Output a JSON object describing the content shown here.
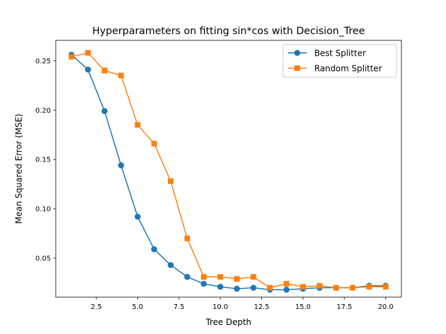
{
  "chart_data": {
    "type": "line",
    "title": "Hyperparameters on fitting sin*cos with Decision_Tree",
    "xlabel": "Tree Depth",
    "ylabel": "Mean Squared Error (MSE)",
    "xlim": [
      0.05,
      20.95
    ],
    "ylim": [
      0.0105,
      0.2706
    ],
    "xticks": [
      2.5,
      5.0,
      7.5,
      10.0,
      12.5,
      15.0,
      17.5,
      20.0
    ],
    "xtick_labels": [
      "2.5",
      "5.0",
      "7.5",
      "10.0",
      "12.5",
      "15.0",
      "17.5",
      "20.0"
    ],
    "yticks": [
      0.05,
      0.1,
      0.15,
      0.2,
      0.25
    ],
    "ytick_labels": [
      "0.05",
      "0.10",
      "0.15",
      "0.20",
      "0.25"
    ],
    "grid": false,
    "legend_position": "top-right",
    "x": [
      1,
      2,
      3,
      4,
      5,
      6,
      7,
      8,
      9,
      10,
      11,
      12,
      13,
      14,
      15,
      16,
      17,
      18,
      19,
      20
    ],
    "series": [
      {
        "name": "Best Splitter",
        "color": "#1f77b4",
        "marker": "circle",
        "values": [
          0.256,
          0.241,
          0.199,
          0.144,
          0.092,
          0.059,
          0.043,
          0.031,
          0.024,
          0.021,
          0.019,
          0.02,
          0.018,
          0.018,
          0.019,
          0.02,
          0.02,
          0.02,
          0.022,
          0.022
        ]
      },
      {
        "name": "Random Splitter",
        "color": "#ff7f0e",
        "marker": "square",
        "values": [
          0.254,
          0.258,
          0.24,
          0.235,
          0.185,
          0.166,
          0.128,
          0.07,
          0.031,
          0.031,
          0.029,
          0.031,
          0.02,
          0.024,
          0.021,
          0.022,
          0.02,
          0.02,
          0.021,
          0.021
        ]
      }
    ]
  }
}
